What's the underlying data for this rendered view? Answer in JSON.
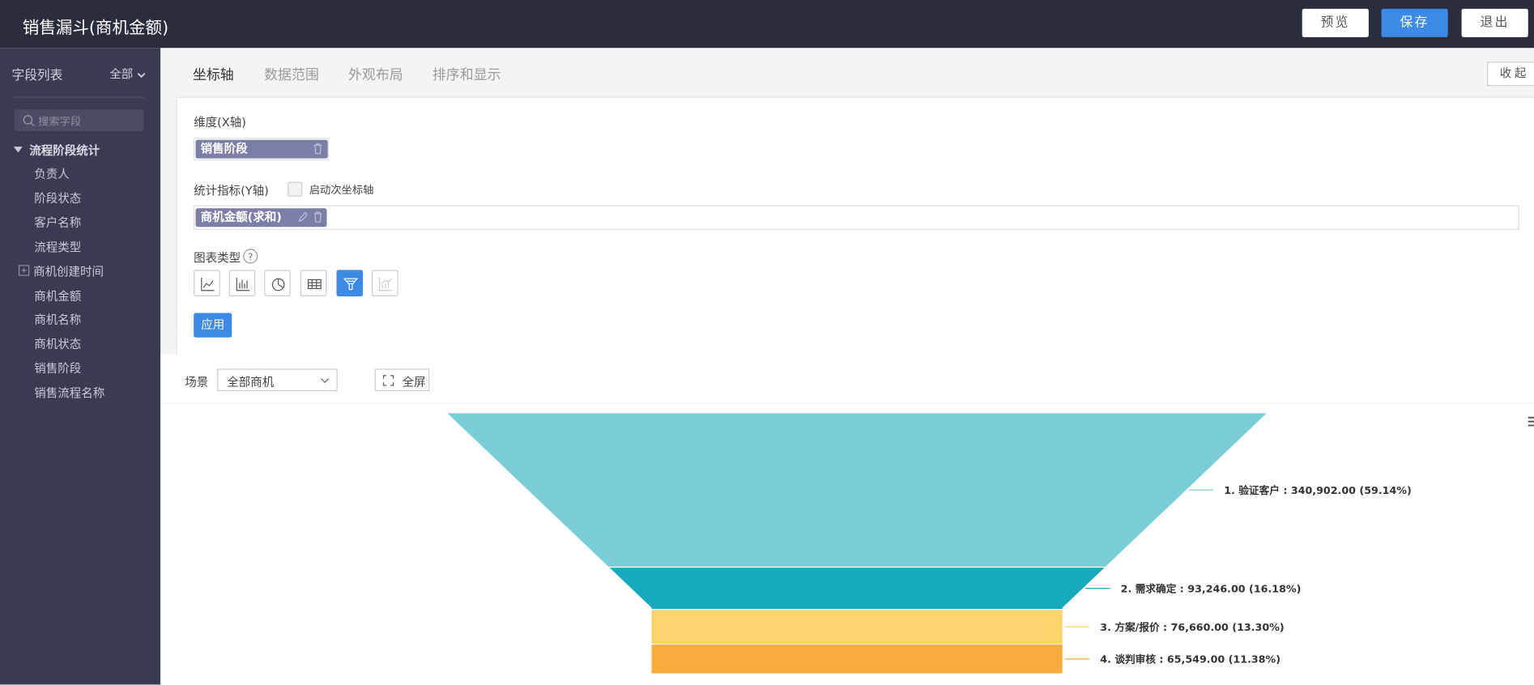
{
  "header": {
    "title": "销售漏斗(商机金额)",
    "buttons": [
      "预览",
      "保存",
      "退出"
    ]
  },
  "sidebar": {
    "title": "字段列表",
    "filter": "全部",
    "search_placeholder": "搜索字段",
    "group": "流程阶段统计",
    "fields": [
      "负责人",
      "阶段状态",
      "客户名称",
      "流程类型",
      "商机创建时间",
      "商机金额",
      "商机名称",
      "商机状态",
      "销售阶段",
      "销售流程名称"
    ]
  },
  "tabs": [
    "坐标轴",
    "数据范围",
    "外观布局",
    "排序和显示"
  ],
  "collapse": "收起",
  "config": {
    "x_label": "维度(X轴)",
    "x_field": "销售阶段",
    "y_label": "统计指标(Y轴)",
    "secondary_axis": "启动次坐标轴",
    "y_field": "商机金额(求和)",
    "chart_type_label": "图表类型",
    "apply": "应用"
  },
  "toolbar": {
    "scene_label": "场景",
    "scene_value": "全部商机",
    "fullscreen": "全屏"
  },
  "chart_data": {
    "type": "funnel",
    "values": [
      340902,
      93246,
      76660,
      65549
    ],
    "value_labels": [
      "1. 验证客户 : 340,902.00 (59.14%)",
      "2. 需求确定 : 93,246.00 (16.18%)",
      "3. 方案/报价 : 76,660.00 (13.30%)",
      "4. 谈判审核 : 65,549.00 (11.38%)"
    ],
    "colors": [
      "#79cdd6",
      "#17a9bd",
      "#fcd46e",
      "#f8ac3d"
    ]
  }
}
